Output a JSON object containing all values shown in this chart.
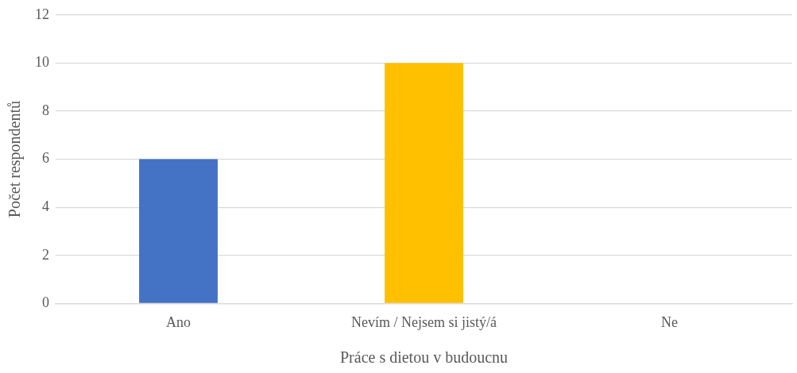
{
  "chart_data": {
    "type": "bar",
    "xlabel": "Práce s dietou v budoucnu",
    "ylabel": "Počet respondentů",
    "categories": [
      "Ano",
      "Nevím / Nejsem si jistý/á",
      "Ne"
    ],
    "values": [
      6,
      10,
      0
    ],
    "colors": [
      "#4472c4",
      "#ffc000",
      "#a5a5a5"
    ],
    "ylim": [
      0,
      12
    ],
    "yticks": [
      0,
      2,
      4,
      6,
      8,
      10,
      12
    ],
    "grid": "y",
    "legend": false
  }
}
